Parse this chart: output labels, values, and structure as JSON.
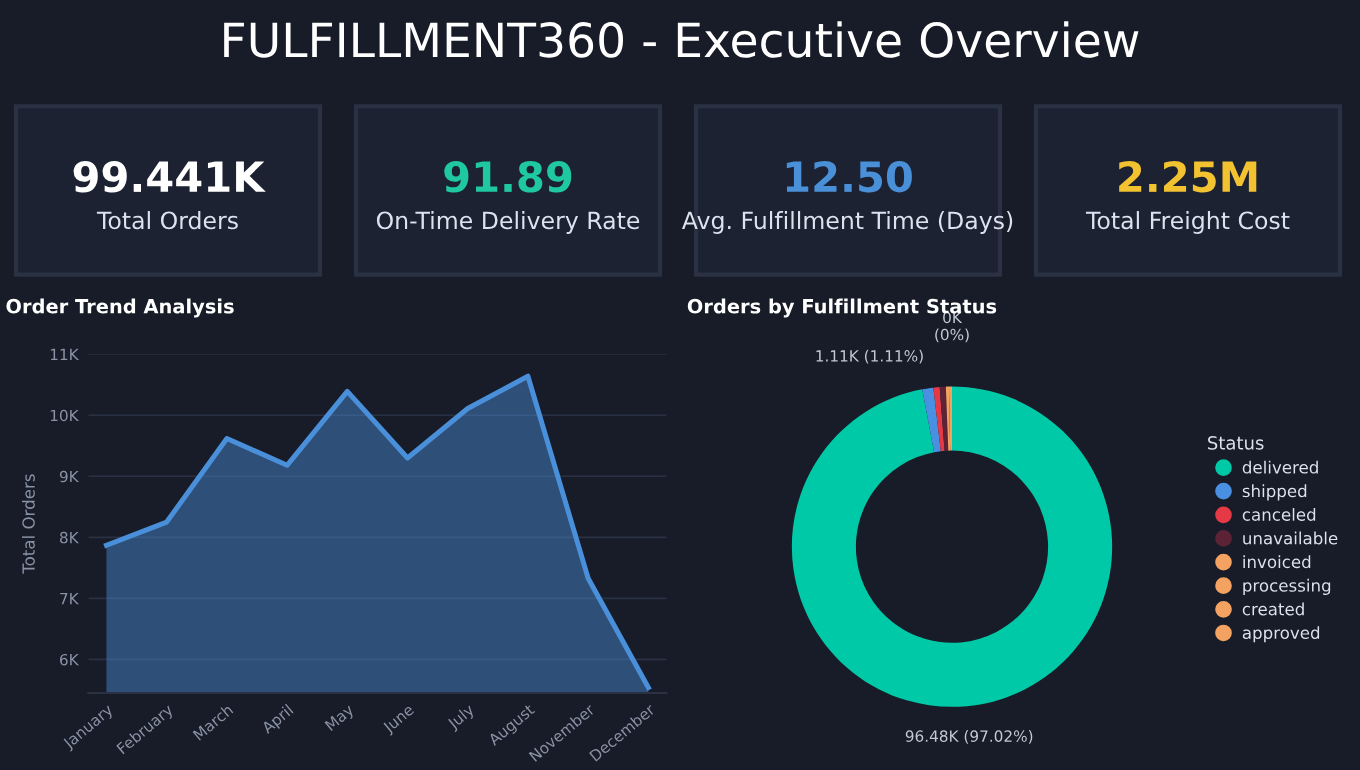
{
  "chart_data": [
    {
      "type": "other",
      "title": "FULFILLMENT360 - Executive Overview",
      "annotations": [
        "99.441K",
        "Total Orders",
        "91.89",
        "On-Time Delivery Rate",
        "12.50",
        "Avg. Fulfillment Time (Days)",
        "2.25M",
        "Total Freight Cost"
      ],
      "colors": [
        "#ffffff",
        "#1fc8a0",
        "#4a90d9",
        "#f2c230"
      ]
    },
    {
      "type": "area",
      "title": "Order Trend Analysis",
      "ylabel": "Total Orders",
      "categories": [
        "January",
        "February",
        "March",
        "April",
        "May",
        "June",
        "July",
        "August",
        "November",
        "December"
      ],
      "series": [
        {
          "color": "#4a8fd9",
          "values": [
            7870,
            8250,
            9620,
            9180,
            10390,
            9300,
            10110,
            10640,
            7330,
            5540
          ]
        }
      ],
      "ylim": [
        5450,
        11000
      ],
      "yticks": [
        {
          "value": 6000,
          "label": "6K"
        },
        {
          "value": 7000,
          "label": "7K"
        },
        {
          "value": 8000,
          "label": "8K"
        },
        {
          "value": 9000,
          "label": "9K"
        },
        {
          "value": 10000,
          "label": "10K"
        },
        {
          "value": 11000,
          "label": "11K"
        }
      ],
      "grid": "y"
    },
    {
      "type": "donut",
      "title": "Orders by Fulfillment Status",
      "legend_title": "Status",
      "legend": "right",
      "categories": [
        "delivered",
        "shipped",
        "canceled",
        "unavailable",
        "invoiced",
        "processing",
        "created",
        "approved"
      ],
      "values": [
        96480,
        1110,
        630,
        610,
        310,
        300,
        null,
        0
      ],
      "value_labels": [
        "96.48K (97.02%)",
        "1.11K (1.11%)",
        null,
        null,
        null,
        null,
        null,
        "0K\n(0%)"
      ],
      "colors": [
        "#00c9a7",
        "#4a90e2",
        "#e63946",
        "#5c2336",
        "#f4a261",
        "#f4a261",
        "#f4a261",
        "#f4a261"
      ]
    }
  ]
}
